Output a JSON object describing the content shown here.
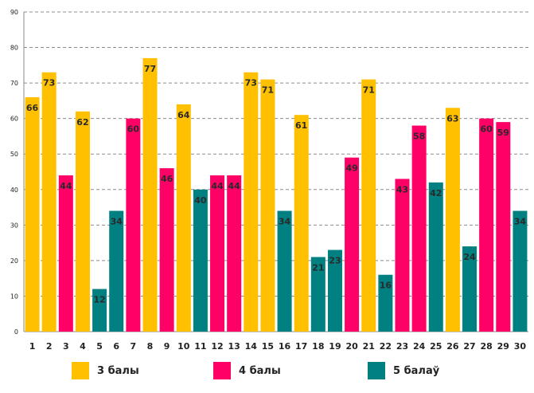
{
  "chart_data": {
    "type": "bar",
    "title": "",
    "xlabel": "",
    "ylabel": "",
    "ylim": [
      0,
      90
    ],
    "y_ticks": [
      0,
      10,
      20,
      30,
      40,
      50,
      60,
      70,
      80,
      90
    ],
    "grid": true,
    "legend_position": "bottom",
    "categories": [
      "1",
      "2",
      "3",
      "4",
      "5",
      "6",
      "7",
      "8",
      "9",
      "10",
      "11",
      "12",
      "13",
      "14",
      "15",
      "16",
      "17",
      "18",
      "19",
      "20",
      "21",
      "22",
      "23",
      "24",
      "25",
      "26",
      "27",
      "28",
      "29",
      "30"
    ],
    "values": [
      66,
      73,
      44,
      62,
      12,
      34,
      60,
      77,
      46,
      64,
      40,
      44,
      44,
      73,
      71,
      34,
      61,
      21,
      23,
      49,
      71,
      16,
      43,
      58,
      42,
      63,
      24,
      60,
      59,
      34
    ],
    "bar_series": [
      0,
      0,
      1,
      0,
      2,
      2,
      1,
      0,
      1,
      0,
      2,
      1,
      1,
      0,
      0,
      2,
      0,
      2,
      2,
      1,
      0,
      2,
      1,
      1,
      2,
      0,
      2,
      1,
      1,
      2
    ],
    "series": [
      {
        "name": "3 балы",
        "color": "#FFC000"
      },
      {
        "name": "4 балы",
        "color": "#FF0066"
      },
      {
        "name": "5 балаў",
        "color": "#008080"
      }
    ]
  }
}
